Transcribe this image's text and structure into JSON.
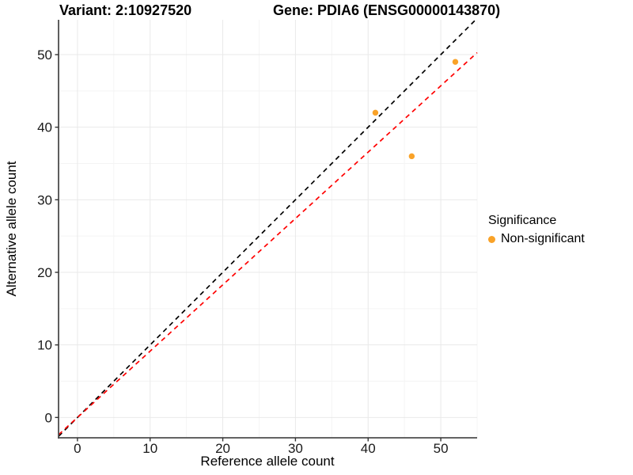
{
  "figure": {
    "title_left": "Variant: 2:10927520",
    "title_right": "Gene: PDIA6 (ENSG00000143870)"
  },
  "chart_data": {
    "type": "scatter",
    "title": "Variant: 2:10927520 — Gene: PDIA6 (ENSG00000143870)",
    "xlabel": "Reference allele count",
    "ylabel": "Alternative allele count",
    "xlim": [
      -2.6,
      55.0
    ],
    "ylim": [
      -2.8,
      54.8
    ],
    "x_ticks": [
      0,
      10,
      20,
      30,
      40,
      50
    ],
    "y_ticks": [
      0,
      10,
      20,
      30,
      40,
      50
    ],
    "x_minor_ticks": [
      5,
      15,
      25,
      35,
      45,
      55
    ],
    "y_minor_ticks": [
      5,
      15,
      25,
      35,
      45,
      55
    ],
    "grid": true,
    "legend_position": "right",
    "series": [
      {
        "name": "Non-significant",
        "marker": "circle",
        "color": "#F9A228",
        "points": [
          {
            "x": 41,
            "y": 42
          },
          {
            "x": 46,
            "y": 36
          },
          {
            "x": 52,
            "y": 49
          }
        ]
      }
    ],
    "lines": [
      {
        "name": "identity-line",
        "slope": 1.0,
        "intercept": 0,
        "color": "#000000",
        "style": "dashed"
      },
      {
        "name": "ratio-line",
        "slope": 0.914,
        "intercept": 0,
        "color": "#FF0000",
        "style": "dashed"
      }
    ],
    "legend": {
      "title": "Significance",
      "items": [
        {
          "label": "Non-significant",
          "color": "#F9A228",
          "marker": "circle"
        }
      ]
    }
  },
  "style_colors": {
    "major_grid": "#E9E9E9",
    "minor_grid": "#F4F4F4",
    "axis_line": "#4D4D4D",
    "tick_mark": "#333333",
    "tick_label": "#1A1A1A",
    "point_color": "#F9A228"
  }
}
